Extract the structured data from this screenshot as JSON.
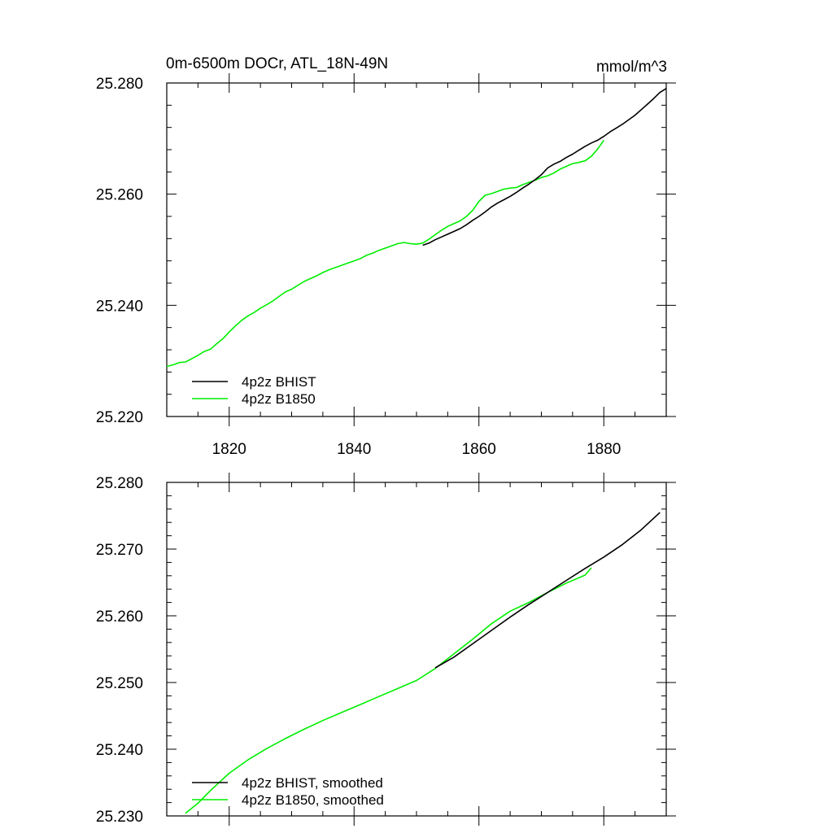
{
  "colors": {
    "bhist": "#000000",
    "b1850": "#00ee00",
    "axis": "#000000",
    "background": "#ffffff"
  },
  "chart_data": [
    {
      "type": "line",
      "title": "0m-6500m DOCr, ATL_18N-49N",
      "units": "mmol/m^3",
      "xlim": [
        1810,
        1890
      ],
      "ylim": [
        25.22,
        25.28
      ],
      "x_ticks": [
        1820,
        1840,
        1860,
        1880
      ],
      "x_tick_labels": [
        "1820",
        "1840",
        "1860",
        "1880"
      ],
      "y_ticks": [
        25.22,
        25.24,
        25.26,
        25.28
      ],
      "y_tick_labels": [
        "25.220",
        "25.240",
        "25.260",
        "25.280"
      ],
      "legend_position": "bottom-left",
      "series": [
        {
          "name": "4p2z BHIST",
          "color": "#000000",
          "x": [
            1851,
            1852,
            1853,
            1854,
            1855,
            1856,
            1857,
            1858,
            1859,
            1860,
            1861,
            1862,
            1863,
            1864,
            1865,
            1866,
            1867,
            1868,
            1869,
            1870,
            1871,
            1872,
            1873,
            1874,
            1875,
            1876,
            1877,
            1878,
            1879,
            1880,
            1881,
            1882,
            1883,
            1884,
            1885,
            1886,
            1887,
            1888,
            1889,
            1890
          ],
          "y": [
            25.2508,
            25.2512,
            25.2518,
            25.2523,
            25.2528,
            25.2533,
            25.2538,
            25.2545,
            25.2553,
            25.256,
            25.2568,
            25.2577,
            25.2584,
            25.259,
            25.2596,
            25.2603,
            25.2611,
            25.2618,
            25.2626,
            25.2635,
            25.2647,
            25.2654,
            25.2659,
            25.2666,
            25.2672,
            25.2679,
            25.2686,
            25.2692,
            25.2697,
            25.2704,
            25.2712,
            25.2719,
            25.2726,
            25.2734,
            25.2742,
            25.2752,
            25.2762,
            25.2772,
            25.2783,
            25.279
          ]
        },
        {
          "name": "4p2z B1850",
          "color": "#00ee00",
          "x": [
            1810,
            1811,
            1812,
            1813,
            1814,
            1815,
            1816,
            1817,
            1818,
            1819,
            1820,
            1821,
            1822,
            1823,
            1824,
            1825,
            1826,
            1827,
            1828,
            1829,
            1830,
            1831,
            1832,
            1833,
            1834,
            1835,
            1836,
            1837,
            1838,
            1839,
            1840,
            1841,
            1842,
            1843,
            1844,
            1845,
            1846,
            1847,
            1848,
            1849,
            1850,
            1851,
            1852,
            1853,
            1854,
            1855,
            1856,
            1857,
            1858,
            1859,
            1860,
            1861,
            1862,
            1863,
            1864,
            1865,
            1866,
            1867,
            1868,
            1869,
            1870,
            1871,
            1872,
            1873,
            1874,
            1875,
            1876,
            1877,
            1878,
            1879,
            1880
          ],
          "y": [
            25.229,
            25.2293,
            25.2297,
            25.2298,
            25.2304,
            25.231,
            25.2317,
            25.2321,
            25.2331,
            25.234,
            25.2352,
            25.2363,
            25.2373,
            25.2381,
            25.2387,
            25.2395,
            25.2401,
            25.2408,
            25.2416,
            25.2424,
            25.2429,
            25.2436,
            25.2443,
            25.2448,
            25.2453,
            25.2459,
            25.2464,
            25.2468,
            25.2472,
            25.2476,
            25.248,
            25.2484,
            25.249,
            25.2494,
            25.2499,
            25.2503,
            25.2507,
            25.2511,
            25.2513,
            25.2511,
            25.251,
            25.2512,
            25.2519,
            25.2527,
            25.2535,
            25.2542,
            25.2547,
            25.2552,
            25.256,
            25.2571,
            25.2587,
            25.2598,
            25.2601,
            25.2605,
            25.2609,
            25.2611,
            25.2612,
            25.2617,
            25.2621,
            25.2625,
            25.263,
            25.2633,
            25.2638,
            25.2645,
            25.265,
            25.2655,
            25.2657,
            25.266,
            25.2668,
            25.2681,
            25.2697
          ]
        }
      ]
    },
    {
      "type": "line",
      "title": "",
      "xlim": [
        1810,
        1890
      ],
      "ylim": [
        25.23,
        25.28
      ],
      "x_ticks": [
        1820,
        1840,
        1860,
        1880
      ],
      "y_ticks": [
        25.23,
        25.24,
        25.25,
        25.26,
        25.27,
        25.28
      ],
      "y_tick_labels": [
        "25.230",
        "25.240",
        "25.250",
        "25.260",
        "25.270",
        "25.280"
      ],
      "legend_position": "bottom-left",
      "series": [
        {
          "name": "4p2z BHIST, smoothed",
          "color": "#000000",
          "x": [
            1853,
            1856,
            1859,
            1862,
            1865,
            1868,
            1871,
            1874,
            1877,
            1880,
            1883,
            1886,
            1889
          ],
          "y": [
            25.2522,
            25.2538,
            25.2558,
            25.2578,
            25.2598,
            25.2617,
            25.2635,
            25.2653,
            25.2671,
            25.2688,
            25.2707,
            25.2729,
            25.2755
          ]
        },
        {
          "name": "4p2z B1850, smoothed",
          "color": "#00ee00",
          "x": [
            1813,
            1815,
            1817,
            1820,
            1823,
            1826,
            1829,
            1832,
            1835,
            1838,
            1841,
            1844,
            1847,
            1850,
            1853,
            1856,
            1859,
            1862,
            1865,
            1868,
            1871,
            1874,
            1877,
            1878
          ],
          "y": [
            25.2304,
            25.2319,
            25.2338,
            25.2364,
            25.2384,
            25.2401,
            25.2416,
            25.243,
            25.2443,
            25.2455,
            25.2467,
            25.2479,
            25.2491,
            25.2503,
            25.2521,
            25.2543,
            25.2565,
            25.2588,
            25.2607,
            25.262,
            25.2635,
            25.2649,
            25.2661,
            25.2672
          ]
        }
      ]
    }
  ]
}
